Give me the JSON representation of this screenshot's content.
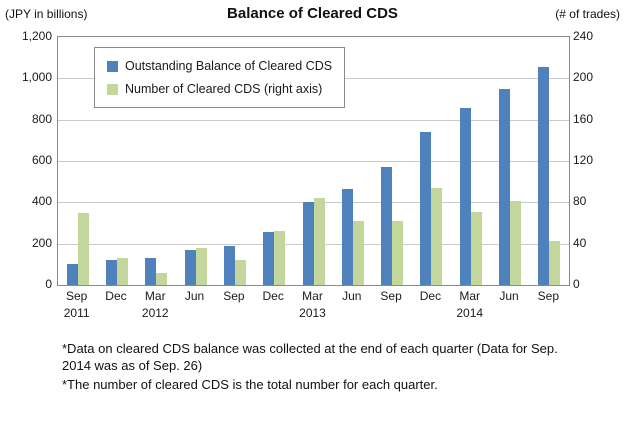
{
  "header": {
    "left_axis_unit": "(JPY in billions)",
    "title": "Balance of Cleared CDS",
    "right_axis_unit": "(# of trades)"
  },
  "chart_data": {
    "type": "bar",
    "title": "Balance of Cleared CDS",
    "categories": [
      "Sep",
      "Dec",
      "Mar",
      "Jun",
      "Sep",
      "Dec",
      "Mar",
      "Jun",
      "Sep",
      "Dec",
      "Mar",
      "Jun",
      "Sep"
    ],
    "year_labels": [
      {
        "index": 0,
        "label": "2011"
      },
      {
        "index": 2,
        "label": "2012"
      },
      {
        "index": 6,
        "label": "2013"
      },
      {
        "index": 10,
        "label": "2014"
      }
    ],
    "series": [
      {
        "name": "Outstanding Balance of Cleared CDS",
        "axis": "left",
        "color": "#4f81bd",
        "values": [
          100,
          120,
          130,
          170,
          190,
          255,
          400,
          465,
          570,
          740,
          855,
          950,
          1055
        ]
      },
      {
        "name": "Number of Cleared CDS (right axis)",
        "axis": "right",
        "color": "#c3d69b",
        "values": [
          70,
          26,
          12,
          36,
          24,
          52,
          84,
          62,
          62,
          94,
          71,
          81,
          43
        ]
      }
    ],
    "left_axis": {
      "label": "(JPY in billions)",
      "min": 0,
      "max": 1200,
      "ticks": [
        "1,200",
        "1,000",
        "800",
        "600",
        "400",
        "200",
        "0"
      ]
    },
    "right_axis": {
      "label": "(# of trades)",
      "min": 0,
      "max": 240,
      "ticks": [
        "240",
        "200",
        "160",
        "120",
        "80",
        "40",
        "0"
      ]
    },
    "grid": true,
    "legend_position": "top-left-inside"
  },
  "footnotes": [
    "*Data on cleared CDS balance was collected at the end of each quarter (Data for Sep. 2014 was as of Sep. 26)",
    "*The number of cleared CDS is the total number for each quarter."
  ]
}
